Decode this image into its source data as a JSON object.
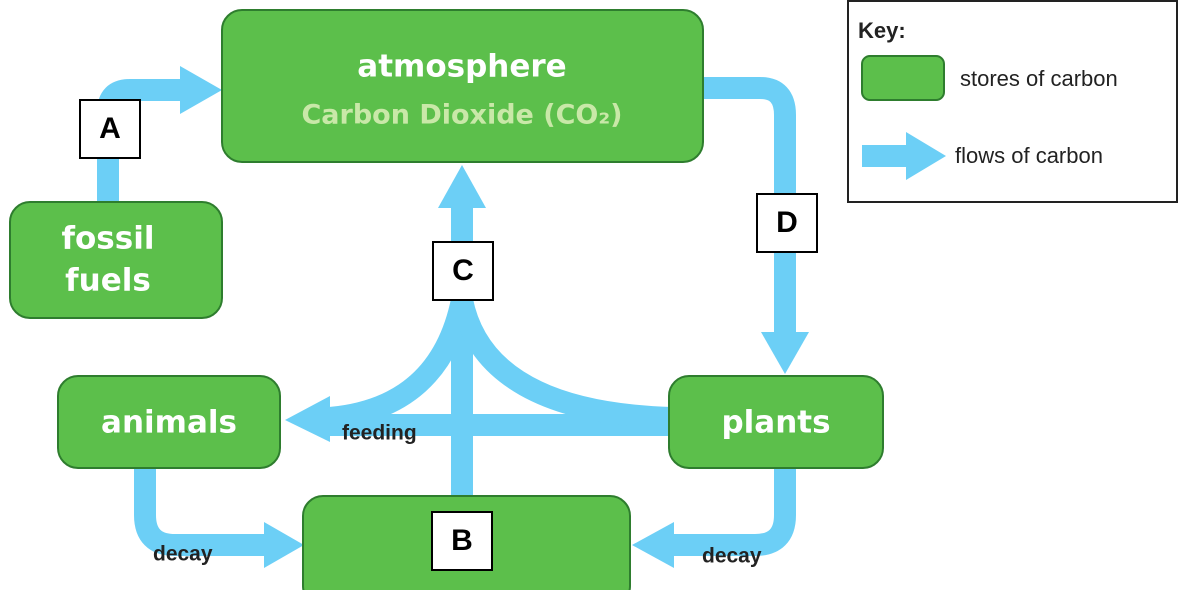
{
  "nodes": {
    "atmosphere": {
      "label": "atmosphere",
      "sublabel": "Carbon Dioxide (CO₂)"
    },
    "fossil_fuels": {
      "lines": [
        "fossil",
        "fuels"
      ]
    },
    "animals": {
      "label": "animals"
    },
    "plants": {
      "label": "plants"
    }
  },
  "letters": [
    "A",
    "B",
    "C",
    "D"
  ],
  "flow_labels": {
    "feeding": "feeding",
    "decay_left": "decay",
    "decay_right": "decay"
  },
  "key": {
    "title": "Key:",
    "items": [
      "stores of carbon",
      "flows of carbon"
    ]
  }
}
